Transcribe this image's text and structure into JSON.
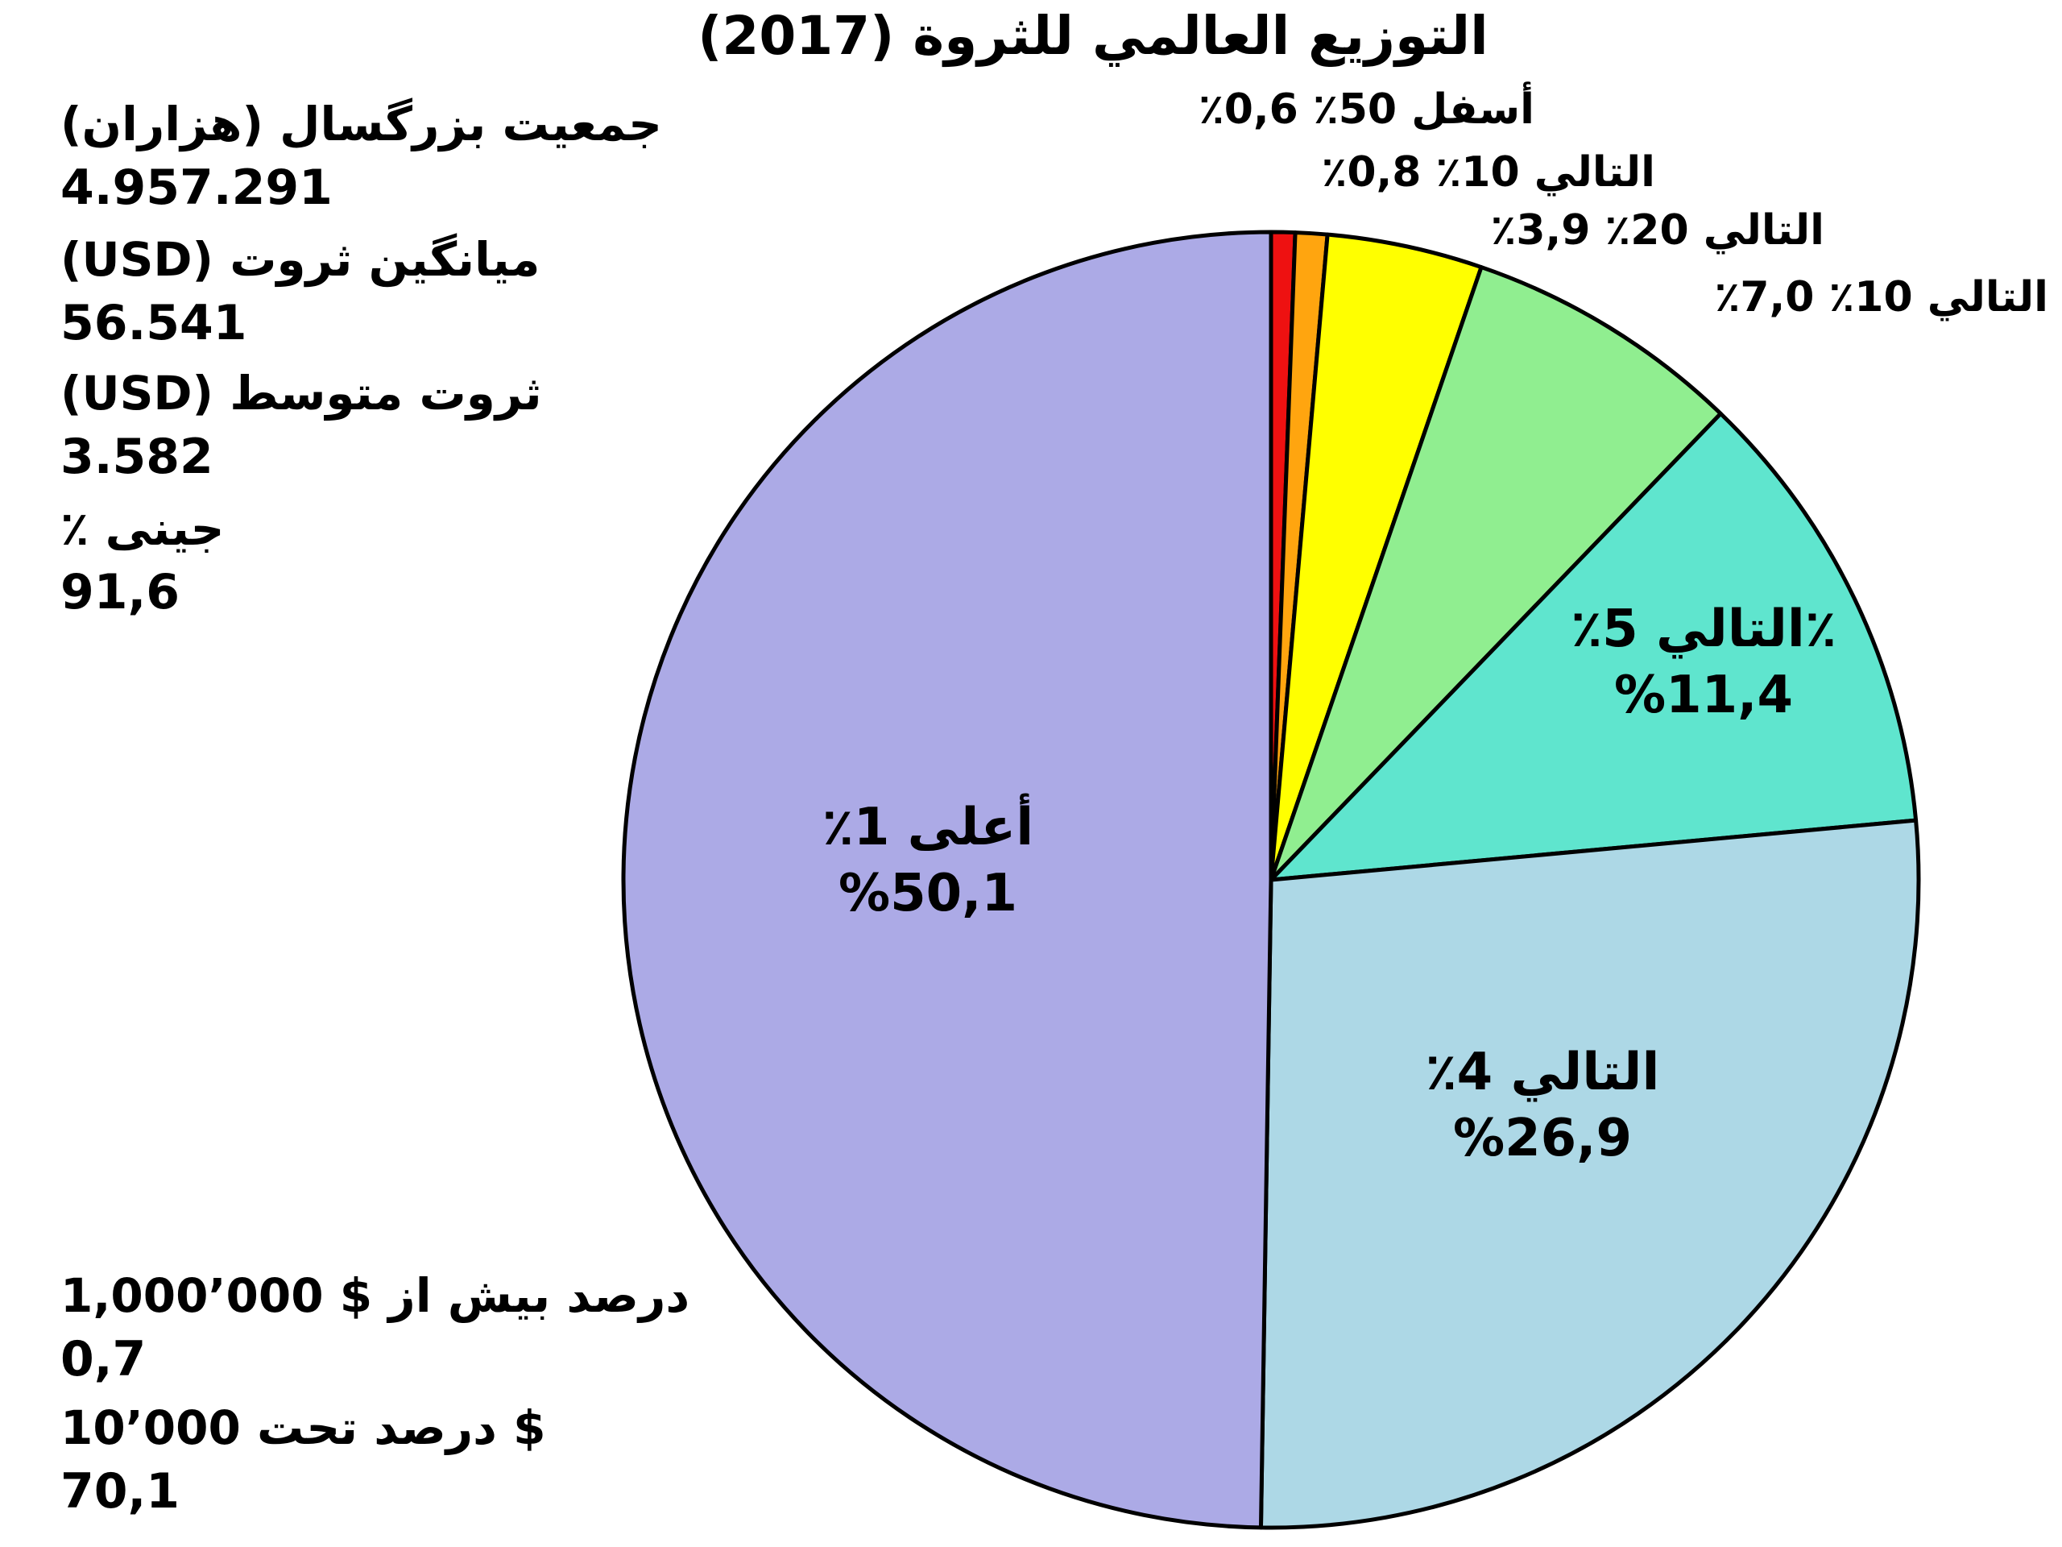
{
  "title": "التوزيع العالمي للثروة (2017)",
  "stats_top": [
    {
      "label": "جمعيت بزرگسال (هزاران)",
      "value": "4.957.291"
    },
    {
      "label": "ميانگين ثروت (USD)",
      "value": "56.541"
    },
    {
      "label": "ثروت متوسط (USD)",
      "value": "3.582"
    },
    {
      "label": "جينى ٪",
      "value": "91,6"
    }
  ],
  "stats_bottom": [
    {
      "label": "درصد بيش از $ 1,000٬000",
      "value": "0,7"
    },
    {
      "label": "$ درصد تحت 10٬000",
      "value": "70,1"
    }
  ],
  "chart_data": {
    "type": "pie",
    "title": "التوزيع العالمي للثروة (2017)",
    "start_angle": "12-oclock",
    "direction": "clockwise",
    "background": "#ffffff",
    "outline_color": "#000000",
    "slices": [
      {
        "name": "bottom-50pct",
        "label": "أسفل 50٪ 0,6٪",
        "value_pct": 0.6,
        "color": "#EE1111",
        "label_position": "outside"
      },
      {
        "name": "next-10pct",
        "label": "التالي 10٪ 0,8٪",
        "value_pct": 0.8,
        "color": "#FFA50F",
        "label_position": "outside"
      },
      {
        "name": "next-20pct",
        "label": "التالي 20٪ 3,9٪",
        "value_pct": 3.9,
        "color": "#FFFF00",
        "label_position": "outside"
      },
      {
        "name": "next-10pct-b",
        "label": "التالي 10٪ 7,0٪",
        "value_pct": 7.0,
        "color": "#90EE90",
        "label_position": "outside"
      },
      {
        "name": "next-5pct",
        "label_line1": "٪التالي 5٪",
        "label_line2": "%11,4",
        "value_pct": 11.4,
        "color": "#5FE5CE",
        "label_position": "inside"
      },
      {
        "name": "next-4pct",
        "label_line1": "التالي 4٪",
        "label_line2": "%26,9",
        "value_pct": 26.9,
        "color": "#ADD8E6",
        "label_position": "inside"
      },
      {
        "name": "top-1pct",
        "label_line1": "أعلى 1٪",
        "label_line2": "%50,1",
        "value_pct": 50.1,
        "color": "#ACAAE6",
        "label_position": "inside"
      }
    ]
  }
}
